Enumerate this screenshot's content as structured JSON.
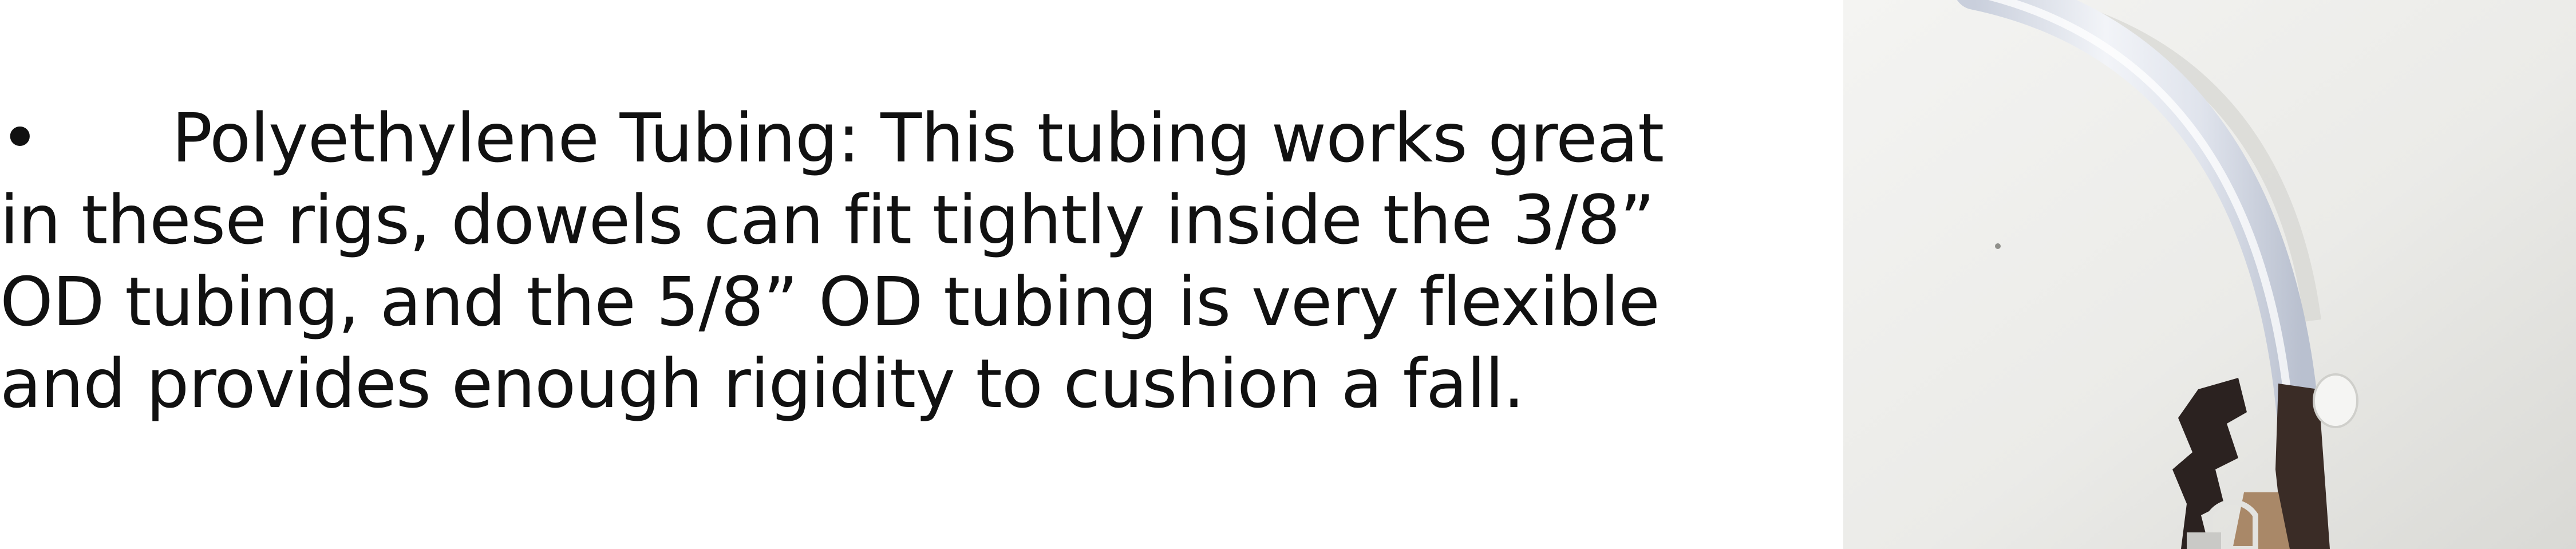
{
  "bullet": {
    "marker": "•",
    "lines": [
      "Polyethylene Tubing: This tubing works great",
      "in these rigs, dowels can fit tightly inside the 3/8”",
      "OD tubing, and the 5/8” OD tubing is very flexible",
      "and provides enough rigidity to cushion a fall."
    ]
  },
  "photo": {
    "subject": "polyethylene-tubing-rig-photo",
    "colors": {
      "background": "#ecece9",
      "tubing": "#dfe4ee",
      "dark_parts": "#2b2220",
      "wood": "#a98868"
    }
  }
}
